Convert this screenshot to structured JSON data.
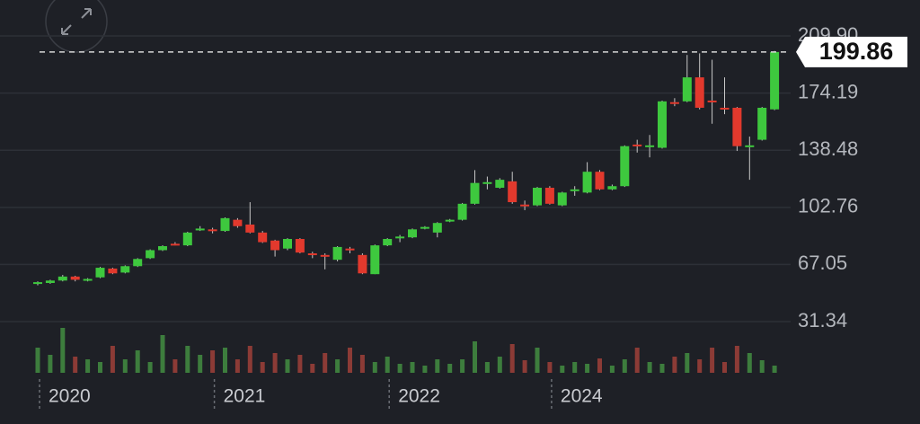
{
  "chart_data": {
    "type": "candlestick",
    "categories": [
      "2020",
      null,
      null,
      null,
      null,
      null,
      null,
      null,
      null,
      null,
      null,
      null,
      null,
      null,
      "2021",
      null,
      null,
      null,
      null,
      null,
      null,
      null,
      null,
      null,
      null,
      null,
      null,
      null,
      "2022",
      null,
      null,
      null,
      null,
      null,
      null,
      null,
      null,
      null,
      null,
      null,
      null,
      "2024",
      null,
      null,
      null,
      null,
      null,
      null,
      null,
      null,
      null,
      null,
      null,
      null,
      null,
      null,
      null,
      null,
      null,
      null
    ],
    "open": [
      55,
      55.5,
      57,
      59.5,
      57,
      59,
      64.5,
      62,
      66,
      71,
      76,
      80,
      79,
      89,
      89,
      88,
      95,
      92,
      87,
      82,
      77,
      83,
      74,
      73,
      70,
      77,
      73,
      61,
      79,
      84,
      84,
      90,
      87,
      94,
      95,
      105,
      118,
      115,
      119,
      104.5,
      104,
      115,
      104,
      113.5,
      112,
      125,
      114,
      116,
      142,
      141,
      140,
      168.5,
      169,
      184,
      169.5,
      165,
      165,
      141,
      145,
      164
    ],
    "high": [
      56.5,
      57.5,
      60.5,
      60,
      58.5,
      65.5,
      65,
      66.5,
      71,
      76.5,
      79,
      81,
      87.5,
      91,
      90,
      96.5,
      96,
      106,
      88,
      82.5,
      83.5,
      83.5,
      75,
      74,
      78.5,
      78,
      74,
      79.5,
      83.5,
      85.5,
      89.5,
      91,
      93.5,
      95.5,
      105.5,
      126,
      122,
      121,
      125,
      107,
      115.5,
      116,
      112.5,
      116,
      131,
      126,
      117,
      141.5,
      145,
      148,
      169.5,
      171,
      198,
      199,
      195,
      184,
      165.5,
      147,
      165.5,
      200.5
    ],
    "low": [
      54,
      55,
      56.5,
      56.5,
      56.5,
      58.5,
      61,
      61.5,
      65.5,
      70.5,
      75.5,
      79,
      78.5,
      88,
      86.5,
      87.5,
      90,
      86.5,
      80.5,
      72,
      76,
      74,
      71,
      64,
      69,
      74,
      61,
      61,
      78.5,
      81,
      83.5,
      89,
      84,
      93.5,
      94.5,
      104.5,
      114,
      114.5,
      105,
      101,
      103.5,
      104.5,
      103.5,
      110,
      111.5,
      113.5,
      113.5,
      115.5,
      137,
      134,
      139.5,
      166,
      168.5,
      164,
      155,
      161,
      138,
      120,
      144.5,
      163.5
    ],
    "close": [
      56,
      57,
      59.5,
      57.5,
      58,
      65,
      61.5,
      66,
      70.5,
      76,
      78.5,
      79.5,
      87,
      89.5,
      88,
      96,
      91,
      87,
      81,
      76,
      83,
      74.5,
      73,
      72,
      78,
      76,
      61.5,
      79,
      83,
      84.5,
      89,
      90.5,
      93,
      95,
      105,
      118,
      118.5,
      120,
      106,
      104,
      115,
      105,
      112,
      114,
      125,
      114,
      116,
      141,
      141.5,
      141.5,
      169,
      167.5,
      184,
      165,
      169,
      164,
      141,
      141.5,
      165,
      199.86
    ],
    "volume": [
      28,
      20,
      50,
      18,
      15,
      12,
      30,
      15,
      25,
      12,
      42,
      15,
      30,
      20,
      25,
      28,
      15,
      30,
      12,
      22,
      15,
      20,
      10,
      22,
      15,
      28,
      20,
      12,
      18,
      10,
      12,
      8,
      15,
      10,
      15,
      35,
      12,
      18,
      32,
      14,
      28,
      12,
      8,
      12,
      10,
      16,
      8,
      15,
      28,
      12,
      10,
      18,
      22,
      15,
      28,
      12,
      30,
      22,
      14,
      8
    ],
    "ylim": [
      19,
      220
    ],
    "yticks": [
      {
        "value": 209.9,
        "label": "209.90"
      },
      174.19,
      138.48,
      102.76,
      67.05,
      31.34
    ],
    "grid": true,
    "up_color": "#3ec83e",
    "down_color": "#e2392d",
    "up_volume_color": "#3d7d3d",
    "down_volume_color": "#8c3b36",
    "last_price": 199.86
  }
}
